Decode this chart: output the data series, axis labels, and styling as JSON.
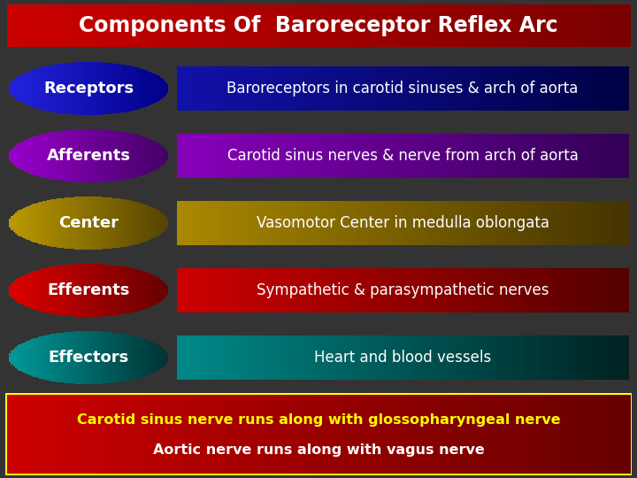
{
  "title": "Components Of  Baroreceptor Reflex Arc",
  "title_bg_left": "#cc0000",
  "title_bg_right": "#7a0000",
  "background_color": "#333333",
  "rows": [
    {
      "label": "Receptors",
      "ellipse_color_left": "#2222dd",
      "ellipse_color_right": "#000088",
      "box_color_left": "#1111aa",
      "box_color_right": "#000044",
      "text": "Baroreceptors in carotid sinuses & arch of aorta"
    },
    {
      "label": "Afferents",
      "ellipse_color_left": "#9900cc",
      "ellipse_color_right": "#440066",
      "box_color_left": "#8800bb",
      "box_color_right": "#330055",
      "text": "Carotid sinus nerves & nerve from arch of aorta"
    },
    {
      "label": "Center",
      "ellipse_color_left": "#bb9900",
      "ellipse_color_right": "#554400",
      "box_color_left": "#aa8800",
      "box_color_right": "#443300",
      "text": "Vasomotor Center in medulla oblongata"
    },
    {
      "label": "Efferents",
      "ellipse_color_left": "#dd0000",
      "ellipse_color_right": "#660000",
      "box_color_left": "#cc0000",
      "box_color_right": "#550000",
      "text": "Sympathetic & parasympathetic nerves"
    },
    {
      "label": "Effectors",
      "ellipse_color_left": "#009999",
      "ellipse_color_right": "#003333",
      "box_color_left": "#008888",
      "box_color_right": "#002222",
      "text": "Heart and blood vessels"
    }
  ],
  "footer_text_line1": "Carotid sinus nerve runs along with glossopharyngeal nerve",
  "footer_text_line2": "Aortic nerve runs along with vagus nerve",
  "footer_text_color": "#ffff00",
  "footer_line2_color": "#ffffff",
  "footer_bg_left": "#cc0000",
  "footer_bg_right": "#660000",
  "footer_border_color": "#ffff00"
}
